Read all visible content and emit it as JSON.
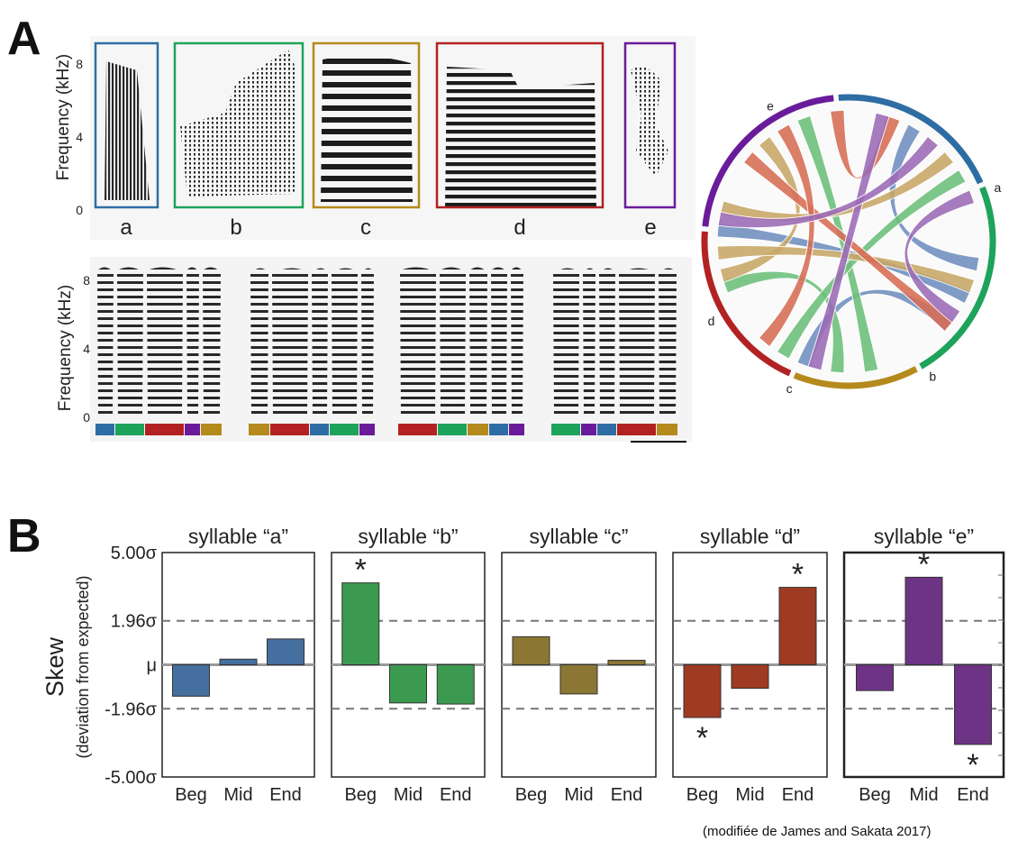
{
  "panel_a": {
    "label": "A",
    "spectrogram_ylabel": "Frequency (kHz)",
    "yticks": [
      "0",
      "4",
      "8"
    ],
    "syllables": [
      {
        "name": "a",
        "color": "#2e6da4"
      },
      {
        "name": "b",
        "color": "#1ea35a"
      },
      {
        "name": "c",
        "color": "#b58a1c"
      },
      {
        "name": "d",
        "color": "#b22222"
      },
      {
        "name": "e",
        "color": "#6a1b9a"
      }
    ],
    "song_sequences": [
      [
        "a",
        "b",
        "d",
        "e",
        "c"
      ],
      [
        "c",
        "d",
        "a",
        "b",
        "e"
      ],
      [
        "d",
        "b",
        "c",
        "a",
        "e"
      ],
      [
        "b",
        "e",
        "a",
        "d",
        "c"
      ]
    ],
    "chord_labels": [
      "d",
      "e",
      "c",
      "a",
      "b"
    ],
    "chord_colors": {
      "a": "#6f8fbf",
      "b": "#6cbf7a",
      "c": "#c9a867",
      "d": "#d76d55",
      "e": "#9b6bb6"
    }
  },
  "panel_b": {
    "label": "B"
  },
  "caption": "(modifiée de James and Sakata 2017)",
  "chart_data": {
    "type": "bar",
    "ylabel": "Skew",
    "ylabel_sub": "(deviation from expected)",
    "yticks": [
      "5.00σ",
      "1.96σ",
      "μ",
      "-1.96σ",
      "-5.00σ"
    ],
    "ytick_values": [
      5.0,
      1.96,
      0,
      -1.96,
      -5.0
    ],
    "ylim": [
      -5.0,
      5.0
    ],
    "reference_lines": [
      1.96,
      -1.96
    ],
    "categories": [
      "Beg",
      "Mid",
      "End"
    ],
    "series": [
      {
        "name": "syllable “a”",
        "color": "#456f9f",
        "values": [
          -1.4,
          0.25,
          1.15
        ],
        "significant": [
          false,
          false,
          false
        ]
      },
      {
        "name": "syllable “b”",
        "color": "#3b9a4f",
        "values": [
          3.65,
          -1.7,
          -1.75
        ],
        "significant": [
          true,
          false,
          false
        ]
      },
      {
        "name": "syllable “c”",
        "color": "#8b7634",
        "values": [
          1.25,
          -1.3,
          0.2
        ],
        "significant": [
          false,
          false,
          false
        ]
      },
      {
        "name": "syllable “d”",
        "color": "#9e3b22",
        "values": [
          -2.35,
          -1.05,
          3.45
        ],
        "significant": [
          true,
          false,
          true
        ]
      },
      {
        "name": "syllable “e”",
        "color": "#6d3385",
        "values": [
          -1.15,
          3.9,
          -3.55
        ],
        "significant": [
          false,
          true,
          true
        ]
      }
    ],
    "significance_marker": "*"
  }
}
